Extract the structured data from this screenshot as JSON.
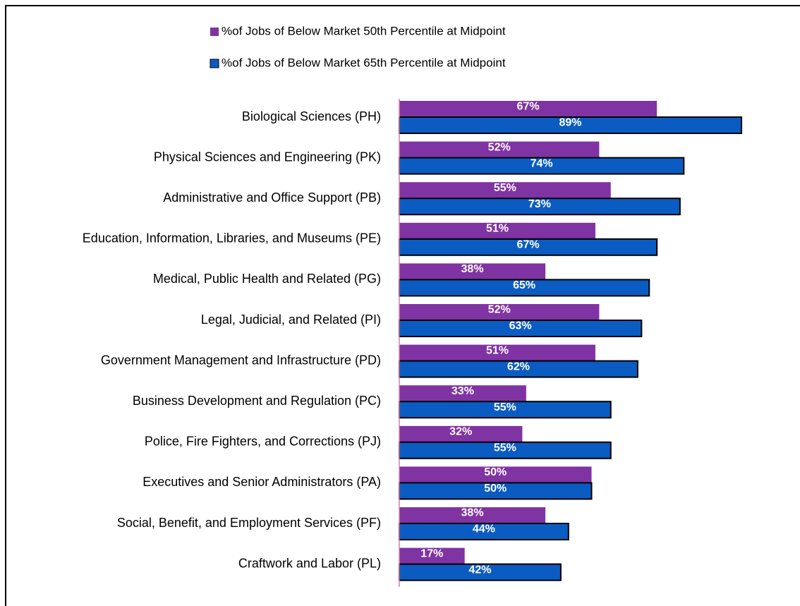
{
  "chart_data": {
    "type": "bar",
    "orientation": "horizontal",
    "categories": [
      "Biological Sciences (PH)",
      "Physical Sciences and Engineering (PK)",
      "Administrative and Office Support (PB)",
      "Education, Information, Libraries, and Museums (PE)",
      "Medical, Public Health and Related (PG)",
      "Legal, Judicial, and Related (PI)",
      "Government Management and Infrastructure (PD)",
      "Business Development and Regulation (PC)",
      "Police, Fire Fighters, and Corrections (PJ)",
      "Executives and Senior Administrators (PA)",
      "Social, Benefit, and Employment Services (PF)",
      "Craftwork and Labor (PL)"
    ],
    "series": [
      {
        "name": "%of Jobs of Below Market 50th Percentile at Midpoint",
        "color": "#8033a3",
        "values": [
          67,
          52,
          55,
          51,
          38,
          52,
          51,
          33,
          32,
          50,
          38,
          17
        ],
        "value_labels": [
          "67%",
          "52%",
          "55%",
          "51%",
          "38%",
          "52%",
          "51%",
          "33%",
          "32%",
          "50%",
          "38%",
          "17%"
        ]
      },
      {
        "name": "%of Jobs of Below Market 65th Percentile at Midpoint",
        "color": "#0b5cc2",
        "values": [
          89,
          74,
          73,
          67,
          65,
          63,
          62,
          55,
          55,
          50,
          44,
          42
        ],
        "value_labels": [
          "89%",
          "74%",
          "73%",
          "67%",
          "65%",
          "63%",
          "62%",
          "55%",
          "55%",
          "50%",
          "44%",
          "42%"
        ]
      }
    ],
    "legend": "top"
  }
}
